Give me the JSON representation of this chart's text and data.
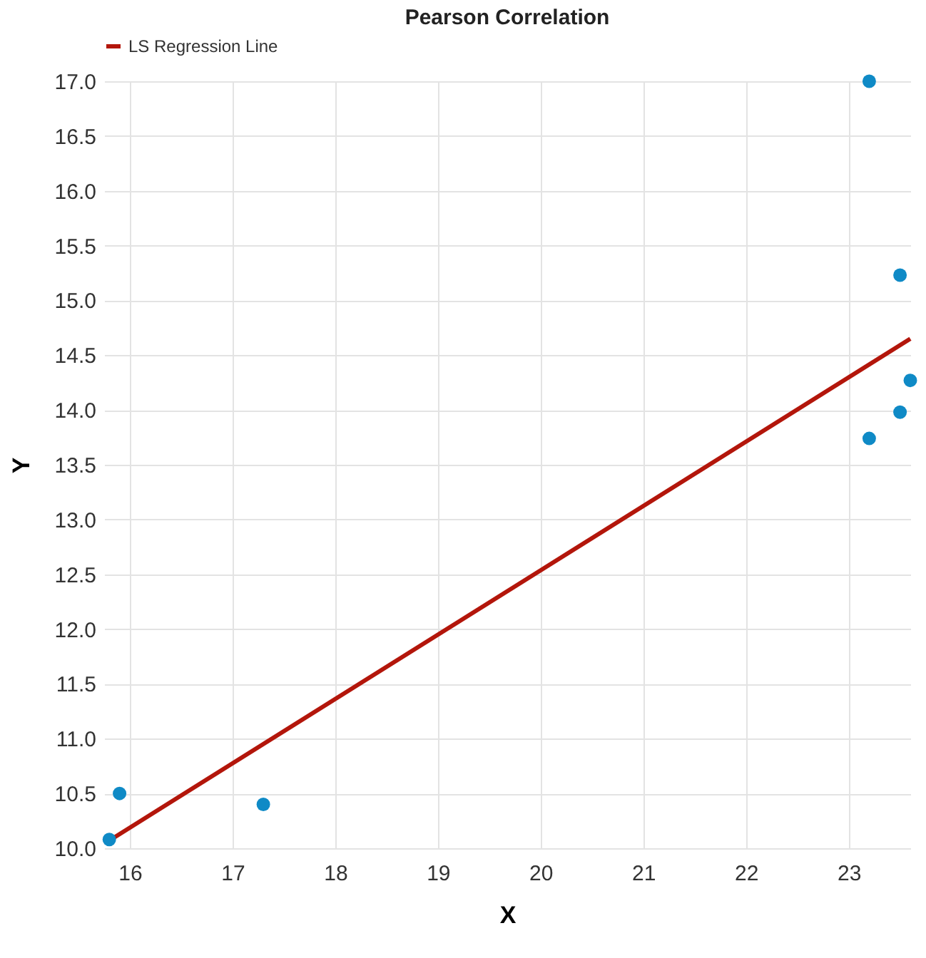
{
  "chart_data": {
    "type": "scatter",
    "title": "Pearson Correlation",
    "xlabel": "X",
    "ylabel": "Y",
    "xlim": [
      15.75,
      23.6
    ],
    "ylim": [
      10,
      17
    ],
    "xticks": [
      16,
      17,
      18,
      19,
      20,
      21,
      22,
      23
    ],
    "yticks": [
      {
        "value": 10,
        "label": "10.0"
      },
      10.5,
      {
        "value": 11,
        "label": "11.0"
      },
      11.5,
      {
        "value": 12,
        "label": "12.0"
      },
      12.5,
      {
        "value": 13,
        "label": "13.0"
      },
      13.5,
      {
        "value": 14,
        "label": "14.0"
      },
      14.5,
      {
        "value": 15,
        "label": "15.0"
      },
      15.5,
      {
        "value": 16,
        "label": "16.0"
      },
      16.5,
      {
        "value": 17,
        "label": "17.0"
      }
    ],
    "grid": true,
    "legend": "top",
    "series": [
      {
        "type": "scatter",
        "marker": "circle",
        "color": "#0f8ac6",
        "x": [
          15.8,
          15.9,
          17.3,
          23.2,
          23.5,
          23.6,
          23.5,
          23.2
        ],
        "values": [
          10.08,
          10.5,
          10.4,
          17.0,
          15.23,
          14.27,
          13.98,
          13.74
        ]
      },
      {
        "type": "line",
        "marker": "none",
        "name": "LS Regression Line",
        "color": "#b3160b",
        "x": [
          15.8,
          23.6
        ],
        "values": [
          10.07,
          14.65
        ]
      }
    ]
  }
}
